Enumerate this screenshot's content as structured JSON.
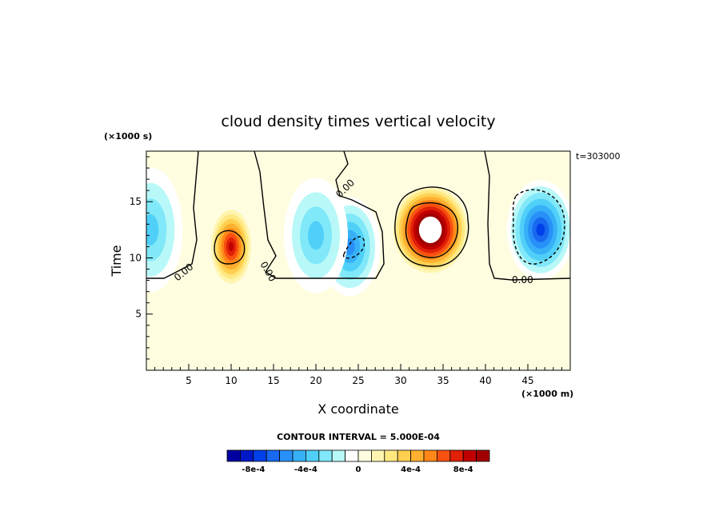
{
  "chart_data": {
    "type": "heatmap",
    "title": "cloud density times vertical velocity",
    "xlabel": "X coordinate",
    "ylabel": "Time",
    "x_unit": "(×1000 m)",
    "y_unit": "(×1000 s)",
    "time_stamp": "t=303000",
    "xlim": [
      0,
      50
    ],
    "ylim": [
      0,
      19.5
    ],
    "x_ticks": [
      5,
      10,
      15,
      20,
      25,
      30,
      35,
      40,
      45
    ],
    "y_ticks": [
      5,
      10,
      15
    ],
    "contour_interval_text": "CONTOUR INTERVAL = 5.000E-04",
    "zero_contour_label": "0.00",
    "zero_contour_level_time": 8.4,
    "colorbar": {
      "levels": [
        -0.001,
        -0.0009,
        -0.0008,
        -0.0007,
        -0.0006,
        -0.0005,
        -0.0004,
        -0.0003,
        -0.0002,
        -0.0001,
        0,
        0.0001,
        0.0002,
        0.0003,
        0.0004,
        0.0005,
        0.0006,
        0.0007,
        0.0008,
        0.0009,
        0.001
      ],
      "colors": [
        "#0000a0",
        "#0018c8",
        "#0040e8",
        "#1868f0",
        "#2890f8",
        "#38b0f8",
        "#50d0f8",
        "#80e8f8",
        "#b8f8f8",
        "#ffffff",
        "#fffde0",
        "#fff5b0",
        "#ffe880",
        "#ffd050",
        "#ffb030",
        "#ff8818",
        "#f85010",
        "#e02008",
        "#c00000",
        "#a00000"
      ],
      "tick_labels": [
        "-8e-4",
        "-4e-4",
        "0",
        "4e-4",
        "8e-4"
      ],
      "tick_values": [
        -0.0008,
        -0.0004,
        0,
        0.0004,
        0.0008
      ]
    },
    "features": [
      {
        "name": "updraft-core-x33",
        "x": 33.5,
        "t": 12.5,
        "peak": 0.0014,
        "type": "positive"
      },
      {
        "name": "updraft-x10",
        "x": 10,
        "t": 11,
        "peak": 0.0009,
        "type": "positive"
      },
      {
        "name": "downdraft-x46",
        "x": 46.5,
        "t": 12.5,
        "peak": -0.0008,
        "type": "negative"
      },
      {
        "name": "downdraft-x24",
        "x": 24,
        "t": 11,
        "peak": -0.0006,
        "type": "negative"
      },
      {
        "name": "downdraft-x20",
        "x": 20,
        "t": 12,
        "peak": -0.0004,
        "type": "negative"
      },
      {
        "name": "downdraft-x1",
        "x": 0.5,
        "t": 12.5,
        "peak": -0.00035,
        "type": "negative"
      }
    ]
  }
}
